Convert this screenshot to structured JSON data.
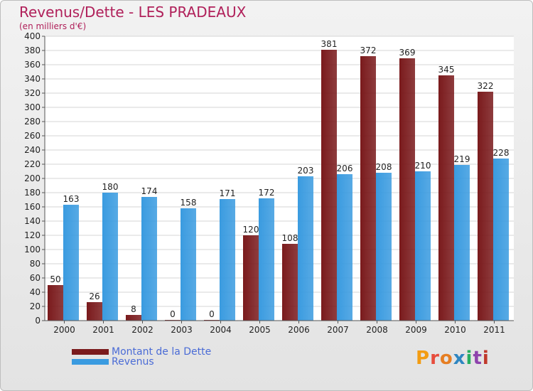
{
  "chart_data": {
    "type": "bar",
    "title": "Revenus/Dette - LES PRADEAUX",
    "subtitle": "(en milliers d'€)",
    "categories": [
      "2000",
      "2001",
      "2002",
      "2003",
      "2004",
      "2005",
      "2006",
      "2007",
      "2008",
      "2009",
      "2010",
      "2011"
    ],
    "series": [
      {
        "name": "Montant de la Dette",
        "color": "#7a1a1c",
        "values": [
          50,
          26,
          8,
          0,
          0,
          120,
          108,
          381,
          372,
          369,
          345,
          322
        ]
      },
      {
        "name": "Revenus",
        "color": "#3a9be0",
        "values": [
          163,
          180,
          174,
          158,
          171,
          172,
          203,
          206,
          208,
          210,
          219,
          228
        ]
      }
    ],
    "ylim": [
      0,
      400
    ],
    "ytick_step": 20,
    "grid": true,
    "legend_position": "bottom-left"
  },
  "logo": {
    "text": "Proxiti",
    "letter_colors": [
      "#f39c12",
      "#e74c3c",
      "#e67e22",
      "#2e86c1",
      "#27ae60",
      "#8e44ad",
      "#c0392b"
    ]
  }
}
